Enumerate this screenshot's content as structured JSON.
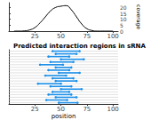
{
  "chart_data": [
    {
      "type": "line",
      "y_label": "coverage",
      "color": "#000000",
      "x": [
        5,
        10,
        15,
        20,
        25,
        30,
        35,
        40,
        45,
        50,
        55,
        60,
        65,
        70,
        75,
        80,
        85,
        90,
        95,
        100
      ],
      "values": [
        0,
        0,
        0.2,
        1,
        3,
        7,
        12,
        17,
        20,
        21,
        21.5,
        18,
        12,
        6,
        2,
        0.5,
        0,
        0,
        0,
        0
      ],
      "xlim": [
        0,
        105
      ],
      "xticks": [
        25,
        50,
        75,
        100
      ],
      "ylim": [
        0,
        24
      ],
      "yticks": [
        0,
        5,
        10,
        15,
        20
      ],
      "grid": false
    },
    {
      "type": "interval",
      "title": "Predicted interaction regions in sRNA",
      "x_label": "position",
      "color": "#1e90e8",
      "tick_labels": "x",
      "starts": [
        42,
        45,
        38,
        50,
        40,
        30,
        45,
        38,
        48,
        35,
        42,
        45,
        28,
        40,
        50,
        42,
        38,
        45,
        36,
        48
      ],
      "ends": [
        68,
        65,
        58,
        72,
        62,
        52,
        60,
        58,
        68,
        55,
        62,
        65,
        50,
        60,
        70,
        58,
        60,
        65,
        56,
        66
      ],
      "xlim": [
        0,
        105
      ],
      "xticks": [
        25,
        50,
        75,
        100
      ],
      "grid": true
    }
  ]
}
